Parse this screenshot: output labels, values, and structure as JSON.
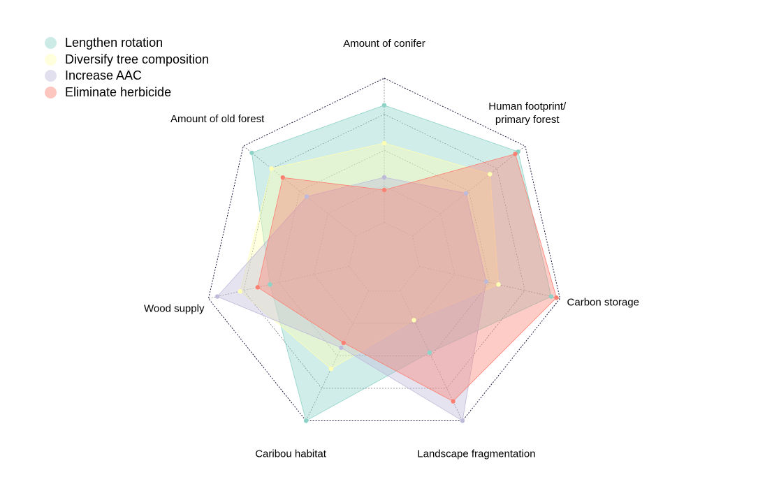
{
  "chart_data": {
    "type": "radar",
    "title": "",
    "axes": [
      {
        "label": [
          "Amount of conifer"
        ]
      },
      {
        "label": [
          "Human footprint/",
          "primary forest"
        ]
      },
      {
        "label": [
          "Carbon storage"
        ]
      },
      {
        "label": [
          "Landscape fragmentation"
        ]
      },
      {
        "label": [
          "Caribou habitat"
        ]
      },
      {
        "label": [
          "Wood supply"
        ]
      },
      {
        "label": [
          "Amount of old forest"
        ]
      }
    ],
    "range": [
      0,
      1
    ],
    "grid_levels": 5,
    "series": [
      {
        "name": "Lengthen rotation",
        "color": "#8DD3C7",
        "values": [
          0.85,
          0.95,
          0.95,
          0.58,
          1.0,
          0.65,
          0.94
        ]
      },
      {
        "name": "Diversify tree composition",
        "color": "#FFFFB3",
        "values": [
          0.64,
          0.75,
          0.65,
          0.38,
          0.68,
          0.82,
          0.8
        ]
      },
      {
        "name": "Increase AAC",
        "color": "#BEBADA",
        "values": [
          0.45,
          0.58,
          0.58,
          1.0,
          0.55,
          0.95,
          0.55
        ]
      },
      {
        "name": "Eliminate herbicide",
        "color": "#FB8072",
        "values": [
          0.38,
          0.93,
          0.98,
          0.88,
          0.52,
          0.72,
          0.72
        ]
      }
    ],
    "legend_position": "top-left",
    "outer_ring_style": "dotted",
    "grid": true
  }
}
